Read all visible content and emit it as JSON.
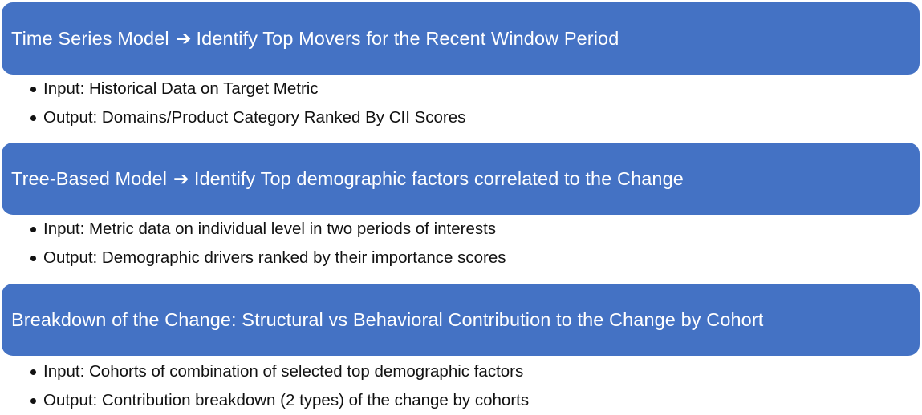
{
  "steps": [
    {
      "title_left": "Time Series Model",
      "arrow": "➔",
      "title_right": "Identify Top Movers for the Recent Window Period",
      "bullets": [
        "Input: Historical Data on Target Metric",
        "Output: Domains/Product Category Ranked By CII Scores"
      ]
    },
    {
      "title_left": "Tree-Based Model",
      "arrow": "➔",
      "title_right": "Identify Top demographic factors correlated to the Change",
      "bullets": [
        "Input: Metric data on individual level in two periods of interests",
        "Output: Demographic drivers ranked by their importance scores"
      ]
    },
    {
      "title": "Breakdown of the Change: Structural vs Behavioral Contribution to the Change by Cohort",
      "bullets": [
        "Input: Cohorts of combination of selected top demographic factors",
        "Output: Contribution breakdown (2 types) of the change by cohorts"
      ]
    }
  ],
  "colors": {
    "bar_fill": "#4472c4",
    "bar_text": "#ffffff",
    "body_text": "#111111"
  }
}
